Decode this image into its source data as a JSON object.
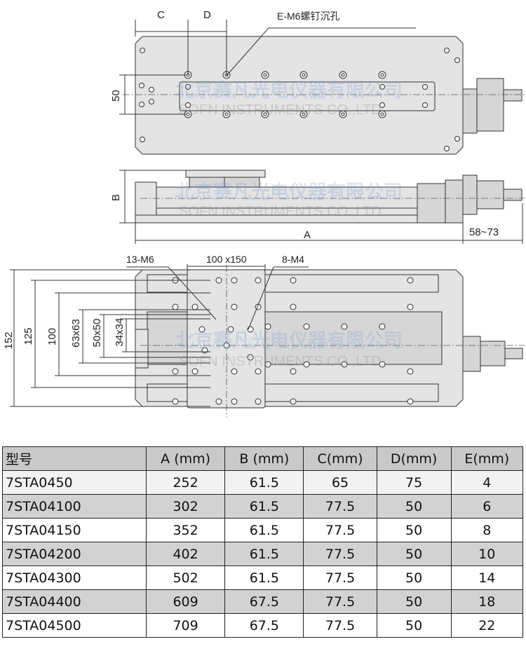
{
  "top_view": {
    "dim_c": "C",
    "dim_d": "D",
    "callout": "E-M6螺钉沉孔",
    "dim_50": "50"
  },
  "side_view": {
    "dim_b": "B",
    "dim_a": "A",
    "dim_stroke": "58~73"
  },
  "bottom_view": {
    "callout_m6": "13-M6",
    "callout_plate": "100 x150",
    "callout_m4": "8-M4",
    "dims": [
      "152",
      "125",
      "100",
      "63x63",
      "50x50",
      "34x34"
    ]
  },
  "watermark": {
    "cn": "北京赛凡光电仪器有限公司",
    "en": "SOFN INSTRUMENTS CO.,LTD."
  },
  "table": {
    "headers": [
      "型号",
      "A (mm)",
      "B (mm)",
      "C(mm)",
      "D(mm)",
      "E(mm)"
    ],
    "rows": [
      [
        "7STA0450",
        "252",
        "61.5",
        "65",
        "75",
        "4"
      ],
      [
        "7STA04100",
        "302",
        "61.5",
        "77.5",
        "50",
        "6"
      ],
      [
        "7STA04150",
        "352",
        "61.5",
        "77.5",
        "50",
        "8"
      ],
      [
        "7STA04200",
        "402",
        "61.5",
        "77.5",
        "50",
        "10"
      ],
      [
        "7STA04300",
        "502",
        "61.5",
        "77.5",
        "50",
        "14"
      ],
      [
        "7STA04400",
        "609",
        "67.5",
        "77.5",
        "50",
        "18"
      ],
      [
        "7STA04500",
        "709",
        "67.5",
        "77.5",
        "50",
        "22"
      ]
    ]
  }
}
